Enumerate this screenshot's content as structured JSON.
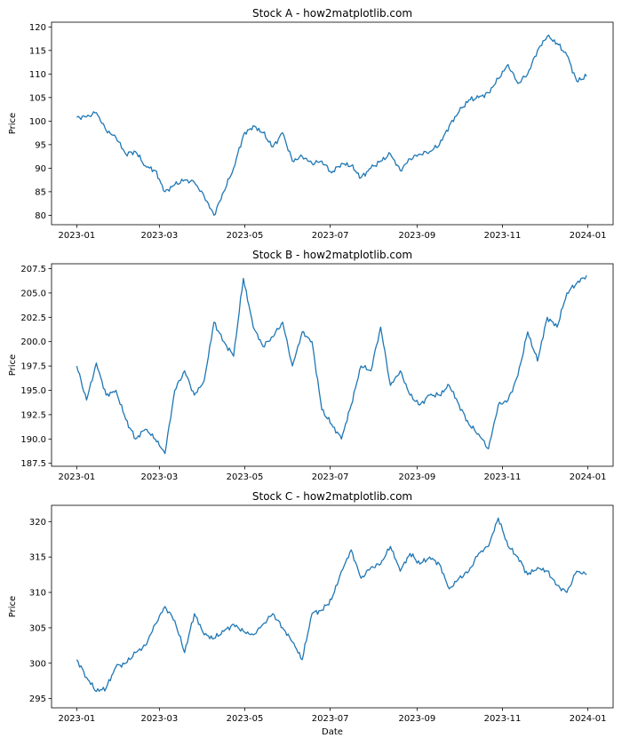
{
  "chart_data": [
    {
      "type": "line",
      "title": "Stock A - how2matplotlib.com",
      "xlabel": "",
      "ylabel": "Price",
      "xlim": [
        "2022-12-14",
        "2024-01-19"
      ],
      "ylim": [
        78,
        121
      ],
      "xticks": [
        "2023-01",
        "2023-03",
        "2023-05",
        "2023-07",
        "2023-09",
        "2023-11",
        "2024-01"
      ],
      "yticks": [
        80,
        85,
        90,
        95,
        100,
        105,
        110,
        115,
        120
      ],
      "grid": false,
      "color": "#1f77b4",
      "series": [
        {
          "x": [
            "2023-01-01",
            "2023-01-08",
            "2023-01-15",
            "2023-01-22",
            "2023-01-29",
            "2023-02-05",
            "2023-02-12",
            "2023-02-19",
            "2023-02-26",
            "2023-03-05",
            "2023-03-12",
            "2023-03-19",
            "2023-03-26",
            "2023-04-02",
            "2023-04-09",
            "2023-04-16",
            "2023-04-23",
            "2023-04-30",
            "2023-05-07",
            "2023-05-14",
            "2023-05-21",
            "2023-05-28",
            "2023-06-04",
            "2023-06-11",
            "2023-06-18",
            "2023-06-25",
            "2023-07-02",
            "2023-07-09",
            "2023-07-16",
            "2023-07-23",
            "2023-07-30",
            "2023-08-06",
            "2023-08-13",
            "2023-08-20",
            "2023-08-27",
            "2023-09-03",
            "2023-09-10",
            "2023-09-17",
            "2023-09-24",
            "2023-10-01",
            "2023-10-08",
            "2023-10-15",
            "2023-10-22",
            "2023-10-29",
            "2023-11-05",
            "2023-11-12",
            "2023-11-19",
            "2023-11-26",
            "2023-12-03",
            "2023-12-10",
            "2023-12-17",
            "2023-12-24",
            "2023-12-31"
          ],
          "y": [
            100.8,
            100.9,
            101.8,
            98.0,
            96.5,
            93.0,
            93.5,
            90.5,
            89.5,
            85.0,
            86.5,
            87.5,
            87.0,
            84.0,
            80.0,
            85.0,
            90.0,
            97.0,
            99.0,
            97.5,
            94.5,
            97.5,
            91.5,
            92.5,
            91.0,
            91.5,
            89.0,
            91.0,
            90.5,
            88.0,
            90.0,
            91.5,
            93.0,
            89.5,
            92.0,
            93.0,
            93.5,
            95.0,
            99.0,
            102.0,
            104.5,
            105.0,
            106.0,
            109.0,
            112.0,
            108.0,
            110.0,
            115.0,
            118.0,
            116.5,
            114.0,
            108.5,
            109.5
          ]
        }
      ]
    },
    {
      "type": "line",
      "title": "Stock B - how2matplotlib.com",
      "xlabel": "",
      "ylabel": "Price",
      "xlim": [
        "2022-12-14",
        "2024-01-19"
      ],
      "ylim": [
        187.2,
        208.0
      ],
      "xticks": [
        "2023-01",
        "2023-03",
        "2023-05",
        "2023-07",
        "2023-09",
        "2023-11",
        "2024-01"
      ],
      "yticks": [
        "187.5",
        "190.0",
        "192.5",
        "195.0",
        "197.5",
        "200.0",
        "202.5",
        "205.0",
        "207.5"
      ],
      "grid": false,
      "color": "#1f77b4",
      "series": [
        {
          "x": [
            "2023-01-01",
            "2023-01-08",
            "2023-01-15",
            "2023-01-22",
            "2023-01-29",
            "2023-02-05",
            "2023-02-12",
            "2023-02-19",
            "2023-02-26",
            "2023-03-05",
            "2023-03-12",
            "2023-03-19",
            "2023-03-26",
            "2023-04-02",
            "2023-04-09",
            "2023-04-16",
            "2023-04-23",
            "2023-04-30",
            "2023-05-07",
            "2023-05-14",
            "2023-05-21",
            "2023-05-28",
            "2023-06-04",
            "2023-06-11",
            "2023-06-18",
            "2023-06-25",
            "2023-07-02",
            "2023-07-09",
            "2023-07-16",
            "2023-07-23",
            "2023-07-30",
            "2023-08-06",
            "2023-08-13",
            "2023-08-20",
            "2023-08-27",
            "2023-09-03",
            "2023-09-10",
            "2023-09-17",
            "2023-09-24",
            "2023-10-01",
            "2023-10-08",
            "2023-10-15",
            "2023-10-22",
            "2023-10-29",
            "2023-11-05",
            "2023-11-12",
            "2023-11-19",
            "2023-11-26",
            "2023-12-03",
            "2023-12-10",
            "2023-12-17",
            "2023-12-24",
            "2023-12-31"
          ],
          "y": [
            197.5,
            194.0,
            197.8,
            194.5,
            195.0,
            192.0,
            190.0,
            191.0,
            190.0,
            188.5,
            195.0,
            197.0,
            194.5,
            196.0,
            202.0,
            200.0,
            198.5,
            206.5,
            201.5,
            199.5,
            200.5,
            202.0,
            197.5,
            201.0,
            200.0,
            193.0,
            191.5,
            190.0,
            193.5,
            197.5,
            197.0,
            201.5,
            195.5,
            197.0,
            194.5,
            193.5,
            194.5,
            194.5,
            195.5,
            193.5,
            191.5,
            190.5,
            189.0,
            193.5,
            194.0,
            196.5,
            201.0,
            198.0,
            202.5,
            201.5,
            205.0,
            206.0,
            206.8
          ]
        }
      ]
    },
    {
      "type": "line",
      "title": "Stock C - how2matplotlib.com",
      "xlabel": "Date",
      "ylabel": "Price",
      "xlim": [
        "2022-12-14",
        "2024-01-19"
      ],
      "ylim": [
        293.7,
        322.3
      ],
      "xticks": [
        "2023-01",
        "2023-03",
        "2023-05",
        "2023-07",
        "2023-09",
        "2023-11",
        "2024-01"
      ],
      "yticks": [
        295,
        300,
        305,
        310,
        315,
        320
      ],
      "grid": false,
      "color": "#1f77b4",
      "series": [
        {
          "x": [
            "2023-01-01",
            "2023-01-08",
            "2023-01-15",
            "2023-01-22",
            "2023-01-29",
            "2023-02-05",
            "2023-02-12",
            "2023-02-19",
            "2023-02-26",
            "2023-03-05",
            "2023-03-12",
            "2023-03-19",
            "2023-03-26",
            "2023-04-02",
            "2023-04-09",
            "2023-04-16",
            "2023-04-23",
            "2023-04-30",
            "2023-05-07",
            "2023-05-14",
            "2023-05-21",
            "2023-05-28",
            "2023-06-04",
            "2023-06-11",
            "2023-06-18",
            "2023-06-25",
            "2023-07-02",
            "2023-07-09",
            "2023-07-16",
            "2023-07-23",
            "2023-07-30",
            "2023-08-06",
            "2023-08-13",
            "2023-08-20",
            "2023-08-27",
            "2023-09-03",
            "2023-09-10",
            "2023-09-17",
            "2023-09-24",
            "2023-10-01",
            "2023-10-08",
            "2023-10-15",
            "2023-10-22",
            "2023-10-29",
            "2023-11-05",
            "2023-11-12",
            "2023-11-19",
            "2023-11-26",
            "2023-12-03",
            "2023-12-10",
            "2023-12-17",
            "2023-12-24",
            "2023-12-31"
          ],
          "y": [
            300.5,
            298.0,
            296.0,
            296.5,
            299.5,
            300.0,
            301.5,
            302.5,
            305.5,
            308.0,
            306.0,
            301.5,
            307.0,
            304.0,
            303.5,
            304.5,
            305.5,
            304.5,
            304.0,
            305.5,
            307.0,
            305.0,
            303.0,
            300.5,
            307.0,
            307.5,
            309.0,
            313.0,
            316.0,
            312.0,
            313.5,
            314.0,
            316.5,
            313.0,
            315.5,
            314.0,
            315.0,
            314.0,
            310.5,
            312.0,
            313.0,
            315.5,
            316.5,
            320.5,
            316.5,
            315.0,
            312.5,
            313.5,
            313.0,
            311.0,
            310.0,
            313.0,
            312.5
          ]
        }
      ]
    }
  ]
}
